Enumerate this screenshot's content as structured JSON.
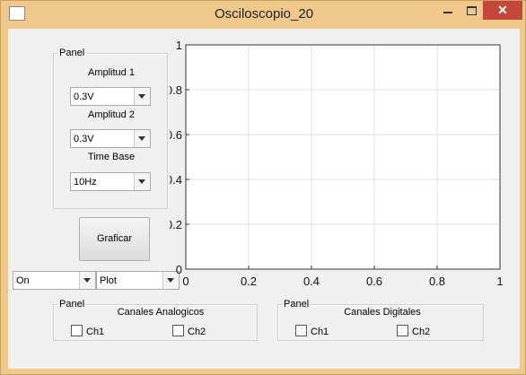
{
  "window": {
    "title": "Osciloscopio_20",
    "close_glyph": "✕"
  },
  "panel_settings": {
    "legend": "Panel",
    "amplitude1": {
      "label": "Amplitud 1",
      "value": "0.3V"
    },
    "amplitude2": {
      "label": "Amplitud 2",
      "value": "0.3V"
    },
    "time_base": {
      "label": "Time Base",
      "value": "10Hz"
    }
  },
  "graph_button": "Graficar",
  "dropdown_mode": "On",
  "dropdown_plot": "Plot",
  "analog_panel": {
    "legend": "Panel",
    "title": "Canales Analogicos",
    "ch1": "Ch1",
    "ch2": "Ch2"
  },
  "digital_panel": {
    "legend": "Panel",
    "title": "Canales Digitales",
    "ch1": "Ch1",
    "ch2": "Ch2"
  },
  "chart_data": {
    "type": "line",
    "series": [],
    "xlim": [
      0,
      1
    ],
    "ylim": [
      0,
      1
    ],
    "x_ticks": [
      "0",
      "0.2",
      "0.4",
      "0.6",
      "0.8",
      "1"
    ],
    "y_ticks": [
      "0",
      "0.2",
      "0.4",
      "0.6",
      "0.8",
      "1"
    ],
    "grid": true,
    "xlabel": "",
    "ylabel": "",
    "title": ""
  }
}
